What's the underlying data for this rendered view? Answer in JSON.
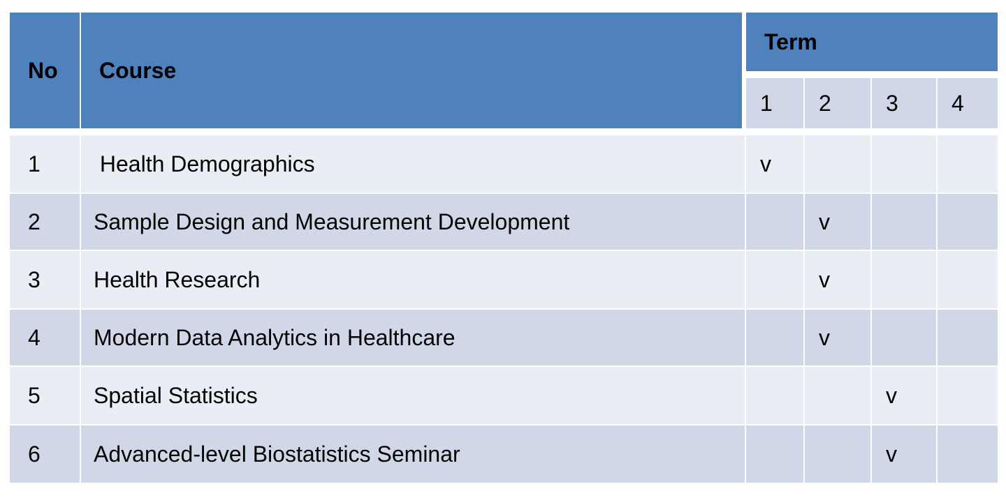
{
  "header": {
    "no": "No",
    "course": "Course",
    "term": "Term",
    "terms": [
      "1",
      "2",
      "3",
      "4"
    ]
  },
  "colors": {
    "header": "#4F81BD",
    "row_light": "#E9EDF4",
    "row_dark": "#D0D8E8"
  },
  "rows": [
    {
      "no": "1",
      "course": " Health Demographics",
      "marks": [
        "v",
        "",
        "",
        ""
      ]
    },
    {
      "no": "2",
      "course": "Sample Design and Measurement Development",
      "marks": [
        "",
        "v",
        "",
        ""
      ]
    },
    {
      "no": "3",
      "course": "Health Research",
      "marks": [
        "",
        "v",
        "",
        ""
      ]
    },
    {
      "no": "4",
      "course": "Modern Data Analytics in Healthcare",
      "marks": [
        "",
        "v",
        "",
        ""
      ]
    },
    {
      "no": "5",
      "course": "Spatial Statistics",
      "marks": [
        "",
        "",
        "v",
        ""
      ]
    },
    {
      "no": "6",
      "course": "Advanced-level Biostatistics Seminar",
      "marks": [
        "",
        "",
        "v",
        ""
      ]
    }
  ]
}
